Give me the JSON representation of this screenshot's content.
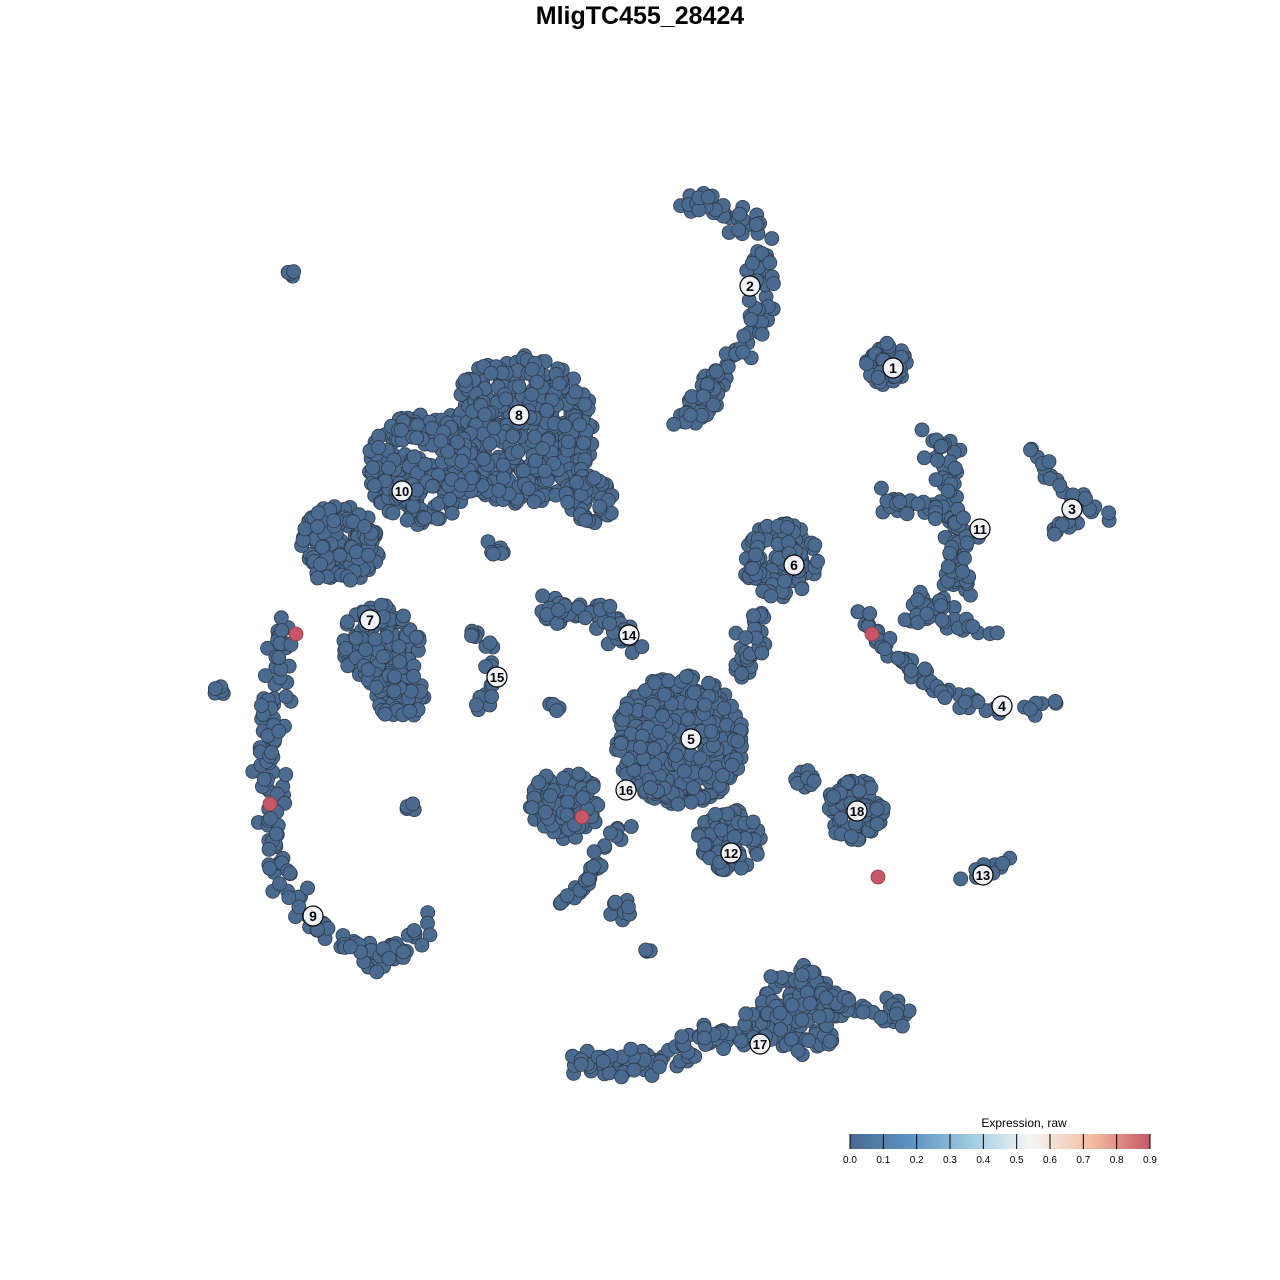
{
  "chart_data": {
    "type": "scatter",
    "title": "MligTC455_28424",
    "xlabel": "",
    "ylabel": "",
    "grid": false,
    "axes_shown": false,
    "point_color_low": "#4b6a90",
    "point_outline": "#2f3b4a",
    "clusters": [
      {
        "label": "1",
        "x": 25.3,
        "y": 27.2
      },
      {
        "label": "2",
        "x": 11.0,
        "y": 35.4
      },
      {
        "label": "3",
        "x": 43.2,
        "y": 13.1
      },
      {
        "label": "4",
        "x": 36.2,
        "y": -6.6
      },
      {
        "label": "5",
        "x": 5.1,
        "y": -9.9
      },
      {
        "label": "6",
        "x": 15.4,
        "y": 7.5
      },
      {
        "label": "7",
        "x": -27.0,
        "y": 2.0
      },
      {
        "label": "8",
        "x": -12.1,
        "y": 22.5
      },
      {
        "label": "9",
        "x": -32.7,
        "y": -27.6
      },
      {
        "label": "10",
        "x": -23.8,
        "y": 14.9
      },
      {
        "label": "11",
        "x": 34.0,
        "y": 11.1
      },
      {
        "label": "12",
        "x": 9.1,
        "y": -21.3
      },
      {
        "label": "13",
        "x": 34.3,
        "y": -23.5
      },
      {
        "label": "14",
        "x": -1.1,
        "y": 0.5
      },
      {
        "label": "15",
        "x": -14.3,
        "y": -3.7
      },
      {
        "label": "16",
        "x": -1.4,
        "y": -15.0
      },
      {
        "label": "17",
        "x": 12.0,
        "y": -40.4
      },
      {
        "label": "18",
        "x": 21.7,
        "y": -17.1
      }
    ],
    "expressing_points": [
      {
        "x": -34.4,
        "y": 0.6,
        "value": 0.9
      },
      {
        "x": -37.0,
        "y": -16.4,
        "value": 0.9
      },
      {
        "x": -5.8,
        "y": -17.7,
        "value": 0.9
      },
      {
        "x": 23.2,
        "y": 0.6,
        "value": 0.9
      },
      {
        "x": 23.8,
        "y": -23.7,
        "value": 0.9
      }
    ],
    "background_expression": 0.0,
    "legend": {
      "title": "Expression, raw",
      "placement": "bottom-right",
      "range": [
        0.0,
        0.9
      ],
      "ticks": [
        "0.0",
        "0.1",
        "0.2",
        "0.3",
        "0.4",
        "0.5",
        "0.6",
        "0.7",
        "0.8",
        "0.9"
      ],
      "colors": [
        "#4b6a92",
        "#5b92c3",
        "#9ec9df",
        "#f5f5f5",
        "#f4c0a4",
        "#c65766"
      ]
    }
  }
}
